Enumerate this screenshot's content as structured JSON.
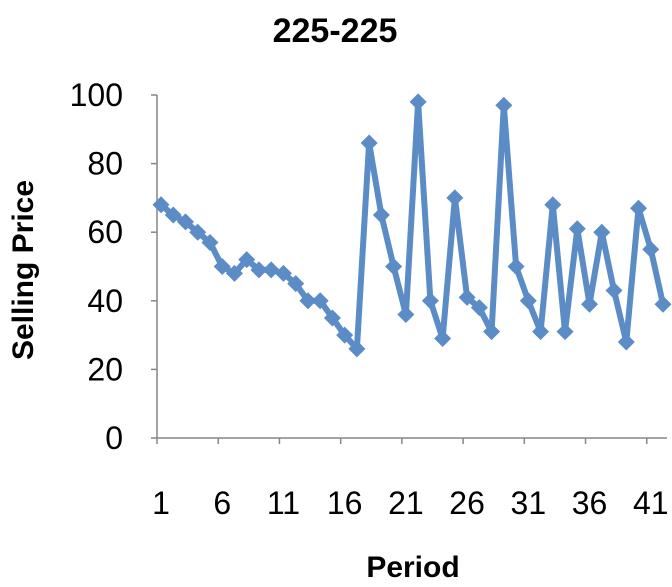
{
  "chart_data": {
    "type": "line",
    "title": "225-225",
    "xlabel": "Period",
    "ylabel": "Selling Price",
    "ylim": [
      0,
      100
    ],
    "xlim": [
      1,
      42
    ],
    "y_ticks": [
      0,
      20,
      40,
      60,
      80,
      100
    ],
    "y_tick_labels": [
      "0",
      "20",
      "40",
      "60",
      "80",
      "100"
    ],
    "x_ticks": [
      1,
      6,
      11,
      16,
      21,
      26,
      31,
      36,
      41
    ],
    "x_tick_labels": [
      "1",
      "6",
      "11",
      "16",
      "21",
      "26",
      "31",
      "36",
      "41"
    ],
    "grid": false,
    "legend": "none",
    "marker": "diamond",
    "colors": {
      "series": "#5B8CC6",
      "axis": "#868686"
    },
    "series": [
      {
        "x": [
          1,
          2,
          3,
          4,
          5,
          6,
          7,
          8,
          9,
          10,
          11,
          12,
          13,
          14,
          15,
          16,
          17,
          18,
          19,
          20,
          21,
          22,
          23,
          24,
          25,
          26,
          27,
          28,
          29,
          30,
          31,
          32,
          33,
          34,
          35,
          36,
          37,
          38,
          39,
          40,
          41,
          42
        ],
        "values": [
          68,
          65,
          63,
          60,
          57,
          50,
          48,
          52,
          49,
          49,
          48,
          45,
          40,
          40,
          35,
          30,
          26,
          86,
          65,
          50,
          36,
          98,
          40,
          29,
          70,
          41,
          38,
          31,
          97,
          50,
          40,
          31,
          68,
          31,
          61,
          39,
          60,
          43,
          28,
          67,
          55,
          39
        ]
      }
    ]
  }
}
